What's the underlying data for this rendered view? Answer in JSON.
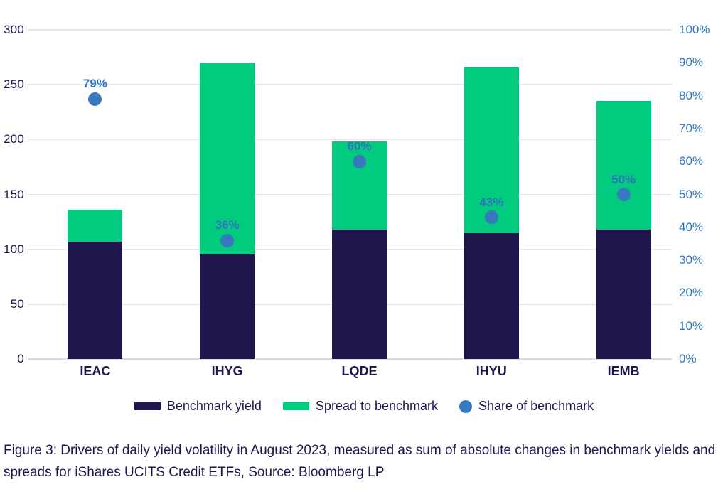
{
  "chart_data": {
    "type": "bar",
    "stacked": true,
    "grid": "horizontal",
    "legend_position": "bottom",
    "categories": [
      "IEAC",
      "IHYG",
      "LQDE",
      "IHYU",
      "IEMB"
    ],
    "series": [
      {
        "name": "Benchmark yield",
        "type": "bar",
        "axis": "left",
        "color": "#20164E",
        "values": [
          107,
          95,
          118,
          115,
          118
        ]
      },
      {
        "name": "Spread to benchmark",
        "type": "bar",
        "axis": "left",
        "color": "#00CB7E",
        "values": [
          29,
          175,
          80,
          151,
          117
        ]
      },
      {
        "name": "Share of benchmark",
        "type": "scatter",
        "axis": "right",
        "color": "#3878BE",
        "values": [
          79,
          36,
          60,
          43,
          50
        ],
        "labels": [
          "79%",
          "36%",
          "60%",
          "43%",
          "50%"
        ]
      }
    ],
    "stack_totals": [
      136,
      270,
      198,
      266,
      235
    ],
    "left_axis": {
      "min": 0,
      "max": 300,
      "step": 50,
      "ticks": [
        "0",
        "50",
        "100",
        "150",
        "200",
        "250",
        "300"
      ]
    },
    "right_axis": {
      "min": 0,
      "max": 100,
      "step": 10,
      "unit": "%",
      "ticks": [
        "0%",
        "10%",
        "20%",
        "30%",
        "40%",
        "50%",
        "60%",
        "70%",
        "80%",
        "90%",
        "100%"
      ]
    }
  },
  "legend": {
    "items": [
      {
        "label": "Benchmark yield",
        "swatch": "navy-rect",
        "color": "#20164E"
      },
      {
        "label": "Spread to benchmark",
        "swatch": "green-rect",
        "color": "#00CB7E"
      },
      {
        "label": "Share of benchmark",
        "swatch": "blue-dot",
        "color": "#3878BE"
      }
    ]
  },
  "caption": {
    "text": "Figure 3: Drivers of daily yield volatility in August 2023, measured as sum of absolute changes in benchmark yields and spreads for iShares UCITS Credit ETFs, Source: Bloomberg LP"
  },
  "colors": {
    "navy": "#20164E",
    "green": "#00CB7E",
    "dot_blue": "#3878BE",
    "axis_blue": "#2E75BC",
    "gridline": "#E6E6EA",
    "background": "#FFFFFF"
  }
}
